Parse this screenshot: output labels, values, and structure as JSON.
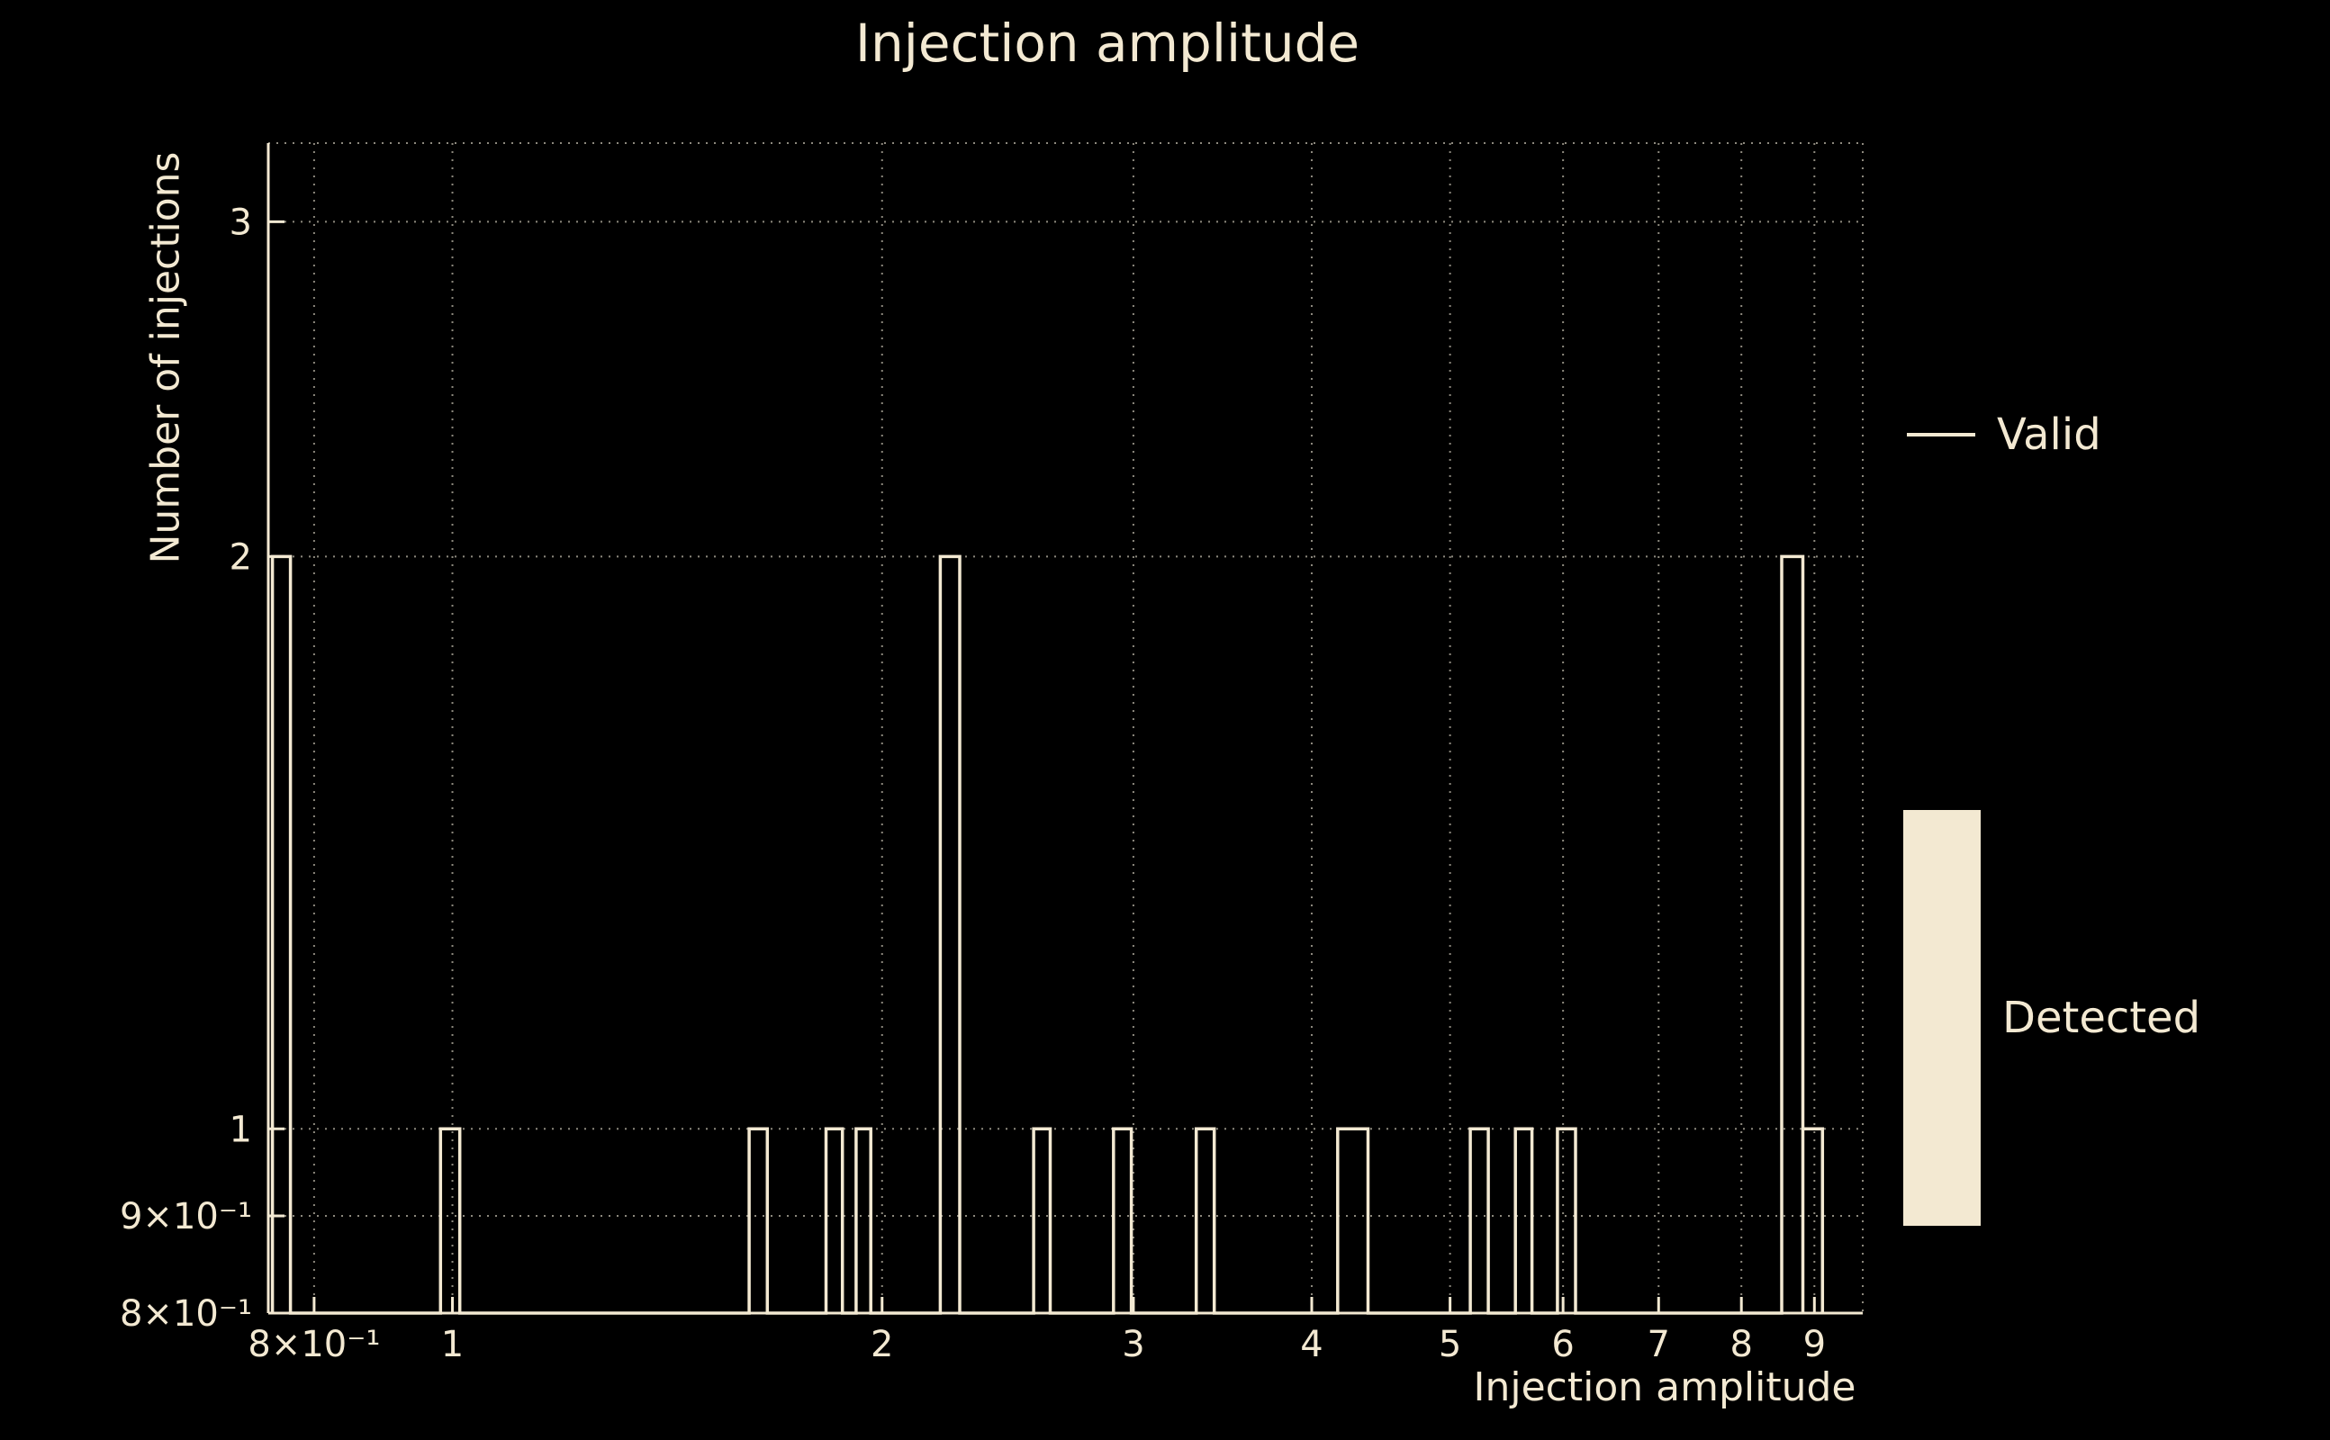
{
  "title": "Injection amplitude",
  "colors": {
    "background": "#000000",
    "foreground": "#f3e9d2",
    "grid": "#8d897e"
  },
  "chart_data": {
    "type": "histogram",
    "title": "Injection amplitude",
    "xlabel": "Injection amplitude",
    "ylabel": "Number of injections",
    "xscale": "log",
    "yscale": "log",
    "xlim": [
      0.743,
      9.73
    ],
    "ylim": [
      0.8,
      3.3
    ],
    "grid": "dotted",
    "legend_position": "outside-right",
    "xticks": [
      {
        "value": 0.8,
        "label": "8×10⁻¹"
      },
      {
        "value": 1,
        "label": "1"
      },
      {
        "value": 2,
        "label": "2"
      },
      {
        "value": 3,
        "label": "3"
      },
      {
        "value": 4,
        "label": "4"
      },
      {
        "value": 5,
        "label": "5"
      },
      {
        "value": 6,
        "label": "6"
      },
      {
        "value": 7,
        "label": "7"
      },
      {
        "value": 8,
        "label": "8"
      },
      {
        "value": 9,
        "label": "9"
      }
    ],
    "yticks": [
      {
        "value": 0.8,
        "label": "8×10⁻¹"
      },
      {
        "value": 0.9,
        "label": "9×10⁻¹"
      },
      {
        "value": 1,
        "label": "1"
      },
      {
        "value": 2,
        "label": "2"
      },
      {
        "value": 3,
        "label": "3"
      }
    ],
    "series": [
      {
        "name": "Valid",
        "style": "step-outline",
        "bins": [
          [
            0.748,
            0.77,
            2
          ],
          [
            0.981,
            1.012,
            1
          ],
          [
            1.614,
            1.662,
            1
          ],
          [
            1.827,
            1.876,
            1
          ],
          [
            1.918,
            1.964,
            1
          ],
          [
            2.197,
            2.267,
            2
          ],
          [
            2.554,
            2.623,
            1
          ],
          [
            2.905,
            2.99,
            1
          ],
          [
            3.32,
            3.418,
            1
          ],
          [
            4.171,
            4.38,
            1
          ],
          [
            5.166,
            5.318,
            1
          ],
          [
            5.556,
            5.706,
            1
          ],
          [
            5.946,
            6.122,
            1
          ],
          [
            8.538,
            8.834,
            2
          ],
          [
            8.834,
            9.118,
            1
          ]
        ]
      },
      {
        "name": "Detected",
        "style": "filled",
        "bins": []
      }
    ]
  }
}
